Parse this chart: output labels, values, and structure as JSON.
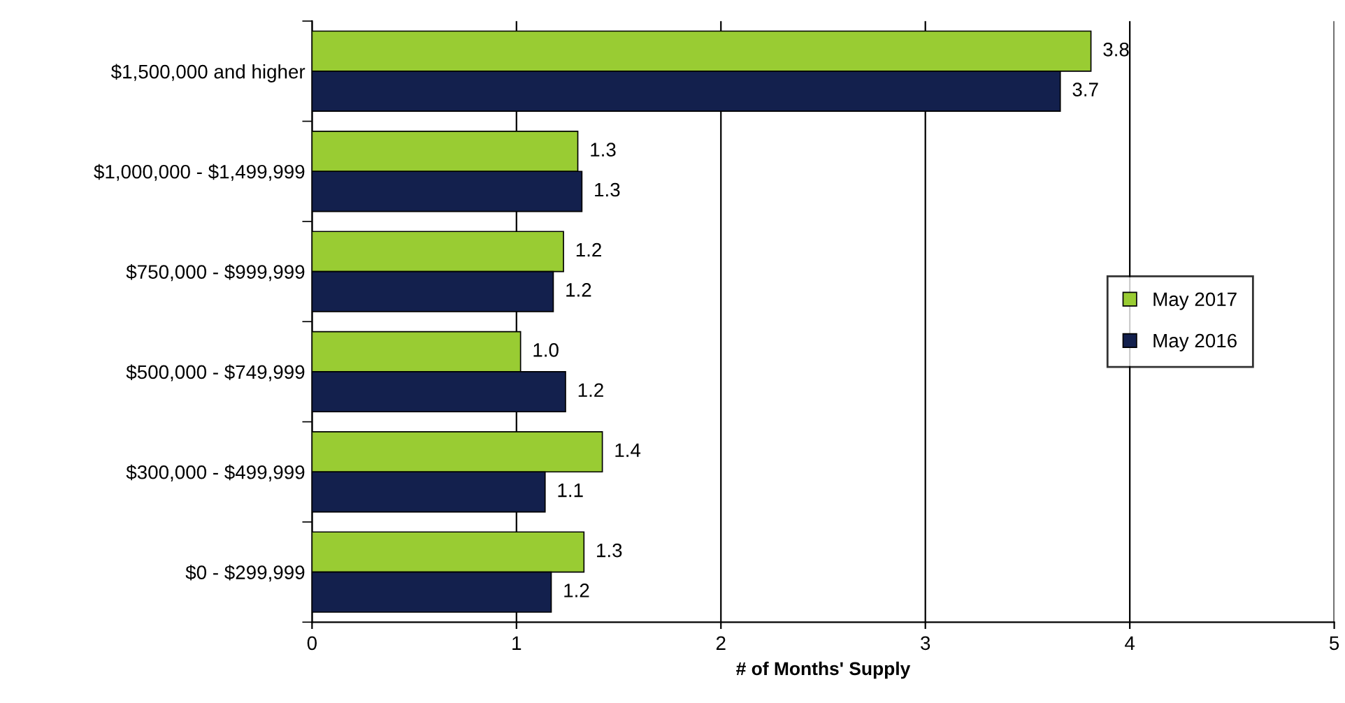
{
  "chart_data": {
    "type": "bar",
    "orientation": "horizontal",
    "categories": [
      "$1,500,000 and higher",
      "$1,000,000 - $1,499,999",
      "$750,000 - $999,999",
      "$500,000 - $749,999",
      "$300,000 - $499,999",
      "$0 - $299,999"
    ],
    "series": [
      {
        "name": "May 2017",
        "color": "#99cc33",
        "values": [
          3.81,
          1.3,
          1.23,
          1.02,
          1.42,
          1.33
        ],
        "value_labels": [
          "3.8",
          "1.3",
          "1.2",
          "1.0",
          "1.4",
          "1.3"
        ]
      },
      {
        "name": "May 2016",
        "color": "#13204d",
        "values": [
          3.66,
          1.32,
          1.18,
          1.24,
          1.14,
          1.17
        ],
        "value_labels": [
          "3.7",
          "1.3",
          "1.2",
          "1.2",
          "1.1",
          "1.2"
        ]
      }
    ],
    "xlabel": "# of Months' Supply",
    "xlim": [
      0,
      5
    ],
    "xticks": [
      0,
      1,
      2,
      3,
      4,
      5
    ],
    "grid": "x",
    "legend": "right"
  }
}
